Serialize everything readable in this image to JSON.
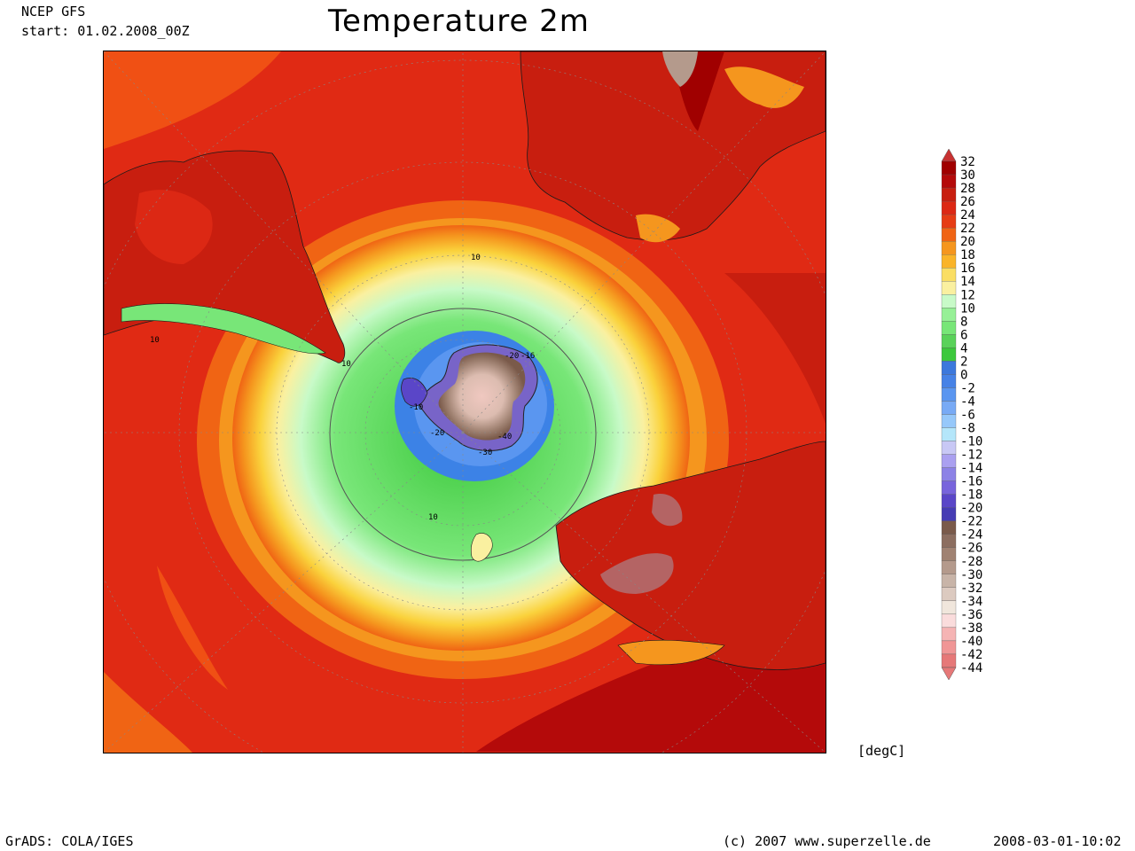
{
  "header": {
    "model": "NCEP GFS",
    "start": "start: 01.02.2008_00Z",
    "title": "Temperature 2m"
  },
  "map": {
    "projection": "south-polar stereographic",
    "region": "Southern Hemisphere centred on Antarctica",
    "contour_labels": [
      "10",
      "10",
      "10",
      "10",
      "-10",
      "-20",
      "-20",
      "-16",
      "-30",
      "-40"
    ],
    "colors": {
      "warm_ocean": "#e02a14",
      "hot": "#b40a0a",
      "orange": "#f06c0a",
      "yellow": "#fad23c",
      "green": "#3cc83c",
      "blue": "#3c82e6",
      "purple": "#7864c8",
      "brown": "#967868",
      "pink": "#f0b4b4"
    }
  },
  "colorbar": {
    "unit": "[degC]",
    "levels": [
      "32",
      "30",
      "28",
      "26",
      "24",
      "22",
      "20",
      "18",
      "16",
      "14",
      "12",
      "10",
      "8",
      "6",
      "4",
      "2",
      "0",
      "-2",
      "-4",
      "-6",
      "-8",
      "-10",
      "-12",
      "-14",
      "-16",
      "-18",
      "-20",
      "-22",
      "-24",
      "-26",
      "-28",
      "-30",
      "-32",
      "-34",
      "-36",
      "-38",
      "-40",
      "-42",
      "-44"
    ],
    "colors": [
      "#c83232",
      "#a00000",
      "#b40a0a",
      "#c81e0f",
      "#dc2814",
      "#e63c14",
      "#f06414",
      "#f5961e",
      "#fab428",
      "#fade64",
      "#faf0a0",
      "#c8fac8",
      "#96f096",
      "#78e678",
      "#5ad25a",
      "#3cc83c",
      "#3c78dc",
      "#4682e6",
      "#5a96f0",
      "#78aaf5",
      "#96c8fa",
      "#b4e6fa",
      "#c8c8f5",
      "#aaa0f0",
      "#8c82e6",
      "#7864dc",
      "#5a46c8",
      "#463cb4",
      "#7a5a4a",
      "#8c6e60",
      "#a08272",
      "#b49a8c",
      "#c8b4a8",
      "#dccac0",
      "#f0e6dc",
      "#fadcdc",
      "#f5b4b4",
      "#f09696",
      "#e67878"
    ]
  },
  "footer": {
    "left": "GrADS: COLA/IGES",
    "copyright": "(c) 2007 www.superzelle.de",
    "timestamp": "2008-03-01-10:02"
  }
}
